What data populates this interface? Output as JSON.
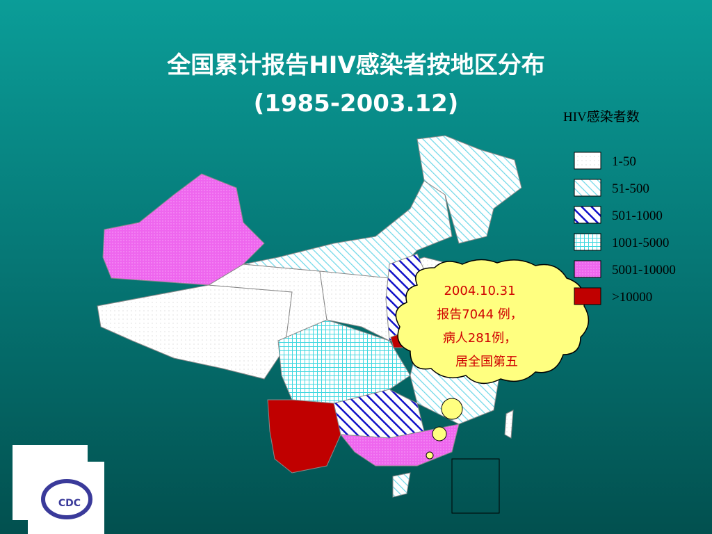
{
  "header": {
    "title": "全国累计报告HIV感染者按地区分布",
    "subtitle": "(1985-2003.12)"
  },
  "legend": {
    "title": "HIV感染者数",
    "items": [
      "1-50",
      "51-500",
      "501-1000",
      "1001-5000",
      "5001-10000",
      ">10000"
    ]
  },
  "callout": {
    "lines": [
      "2004.10.31",
      "报告7044 例，",
      "病人281例，",
      "居全国第五"
    ]
  },
  "logo": {
    "text": "CDC"
  }
}
